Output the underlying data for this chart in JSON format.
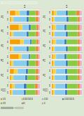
{
  "title": "第1－3－2図　仕事と生活の調和に関する希望と現実（性別・年代別）",
  "bg_color": "#dce8d4",
  "header_color": "#5c3d1e",
  "seg_colors": [
    "#f5a000",
    "#f5d040",
    "#88ccee",
    "#3377bb",
    "#88cc44",
    "#ee8833",
    "#eeaacc"
  ],
  "panels": [
    {
      "gender": "男性",
      "groups": [
        {
          "label": "20代",
          "rows": [
            {
              "name": "希望",
              "values": [
                5,
                8,
                42,
                8,
                22,
                10,
                5
              ]
            },
            {
              "name": "現実",
              "values": [
                20,
                12,
                25,
                8,
                22,
                8,
                5
              ]
            }
          ]
        },
        {
          "label": "30代",
          "rows": [
            {
              "name": "希望",
              "values": [
                5,
                8,
                42,
                8,
                22,
                10,
                5
              ]
            },
            {
              "name": "現実",
              "values": [
                30,
                12,
                22,
                6,
                18,
                8,
                4
              ]
            }
          ]
        },
        {
          "label": "40代",
          "rows": [
            {
              "name": "希望",
              "values": [
                5,
                8,
                42,
                8,
                22,
                10,
                5
              ]
            },
            {
              "name": "現実",
              "values": [
                35,
                12,
                20,
                5,
                16,
                8,
                4
              ]
            }
          ]
        },
        {
          "label": "50代",
          "rows": [
            {
              "name": "希望",
              "values": [
                5,
                8,
                42,
                8,
                22,
                10,
                5
              ]
            },
            {
              "name": "現実",
              "values": [
                30,
                10,
                22,
                6,
                20,
                8,
                4
              ]
            }
          ]
        },
        {
          "label": "60代",
          "rows": [
            {
              "name": "希望",
              "values": [
                5,
                8,
                38,
                8,
                28,
                8,
                5
              ]
            },
            {
              "name": "現実",
              "values": [
                15,
                10,
                28,
                8,
                26,
                8,
                5
              ]
            }
          ]
        },
        {
          "label": "70代以上",
          "rows": [
            {
              "name": "希望",
              "values": [
                4,
                6,
                36,
                8,
                32,
                8,
                6
              ]
            },
            {
              "name": "現実",
              "values": [
                8,
                8,
                30,
                10,
                28,
                10,
                6
              ]
            }
          ]
        }
      ]
    },
    {
      "gender": "女性",
      "groups": [
        {
          "label": "20代",
          "rows": [
            {
              "name": "希望",
              "values": [
                4,
                6,
                38,
                8,
                30,
                8,
                6
              ]
            },
            {
              "name": "現実",
              "values": [
                8,
                8,
                30,
                8,
                28,
                10,
                8
              ]
            }
          ]
        },
        {
          "label": "30代",
          "rows": [
            {
              "name": "希望",
              "values": [
                4,
                6,
                36,
                8,
                32,
                8,
                6
              ]
            },
            {
              "name": "現実",
              "values": [
                6,
                8,
                28,
                8,
                36,
                8,
                6
              ]
            }
          ]
        },
        {
          "label": "40代",
          "rows": [
            {
              "name": "希望",
              "values": [
                4,
                6,
                36,
                8,
                32,
                8,
                6
              ]
            },
            {
              "name": "現実",
              "values": [
                6,
                8,
                28,
                8,
                36,
                8,
                6
              ]
            }
          ]
        },
        {
          "label": "50代",
          "rows": [
            {
              "name": "希望",
              "values": [
                4,
                6,
                36,
                8,
                32,
                8,
                6
              ]
            },
            {
              "name": "現実",
              "values": [
                6,
                8,
                28,
                8,
                36,
                8,
                6
              ]
            }
          ]
        },
        {
          "label": "60代",
          "rows": [
            {
              "name": "希望",
              "values": [
                4,
                6,
                36,
                8,
                32,
                8,
                6
              ]
            },
            {
              "name": "現実",
              "values": [
                6,
                8,
                30,
                8,
                34,
                8,
                6
              ]
            }
          ]
        },
        {
          "label": "70代以上",
          "rows": [
            {
              "name": "希望",
              "values": [
                4,
                6,
                34,
                8,
                34,
                8,
                6
              ]
            },
            {
              "name": "現実",
              "values": [
                5,
                7,
                32,
                8,
                34,
                8,
                6
              ]
            }
          ]
        }
      ]
    }
  ],
  "legend": [
    {
      "color": "#f5a000",
      "label": "仕事優先"
    },
    {
      "color": "#f5d040",
      "label": "どちらかと言えば仕事優先"
    },
    {
      "color": "#88ccee",
      "label": "同じくらい"
    },
    {
      "color": "#3377bb",
      "label": "どちらかと言えば生活優先"
    },
    {
      "color": "#88cc44",
      "label": "生活優先"
    },
    {
      "color": "#ee8833",
      "label": "その他"
    },
    {
      "color": "#eeaacc",
      "label": "不明"
    }
  ],
  "note": "注）"
}
